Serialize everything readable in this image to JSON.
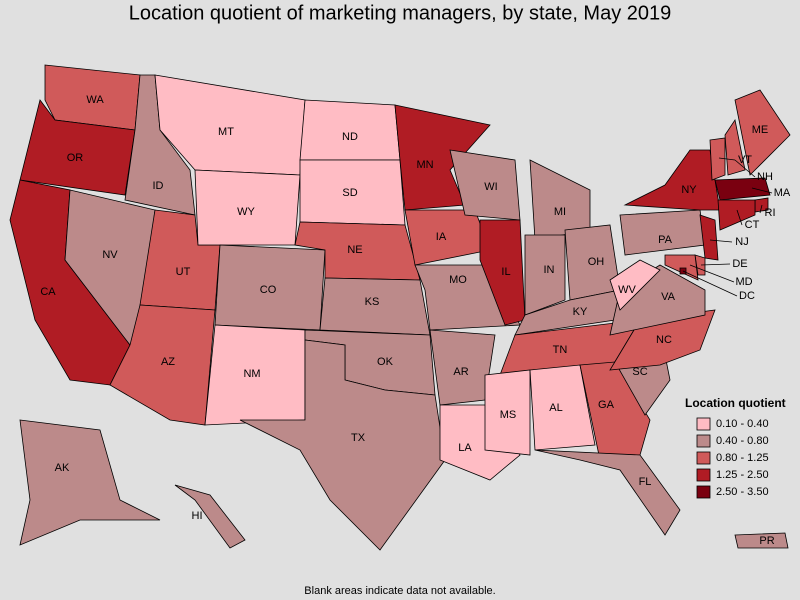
{
  "title": "Location quotient of marketing managers, by state, May 2019",
  "legend": {
    "title": "Location quotient",
    "items": [
      {
        "label": "0.10 - 0.40",
        "color": "#ffbcc4"
      },
      {
        "label": "0.40 - 0.80",
        "color": "#bc8a8a"
      },
      {
        "label": "0.80 - 1.25",
        "color": "#d05a5a"
      },
      {
        "label": "1.25 - 2.50",
        "color": "#b01c24"
      },
      {
        "label": "2.50 - 3.50",
        "color": "#7a0010"
      }
    ]
  },
  "states": [
    {
      "abbr": "WA",
      "class": 2
    },
    {
      "abbr": "OR",
      "class": 3
    },
    {
      "abbr": "CA",
      "class": 3
    },
    {
      "abbr": "ID",
      "class": 1
    },
    {
      "abbr": "NV",
      "class": 1
    },
    {
      "abbr": "UT",
      "class": 2
    },
    {
      "abbr": "AZ",
      "class": 2
    },
    {
      "abbr": "MT",
      "class": 0
    },
    {
      "abbr": "WY",
      "class": 0
    },
    {
      "abbr": "CO",
      "class": 1
    },
    {
      "abbr": "NM",
      "class": 0
    },
    {
      "abbr": "ND",
      "class": 0
    },
    {
      "abbr": "SD",
      "class": 0
    },
    {
      "abbr": "NE",
      "class": 2
    },
    {
      "abbr": "KS",
      "class": 1
    },
    {
      "abbr": "OK",
      "class": 1
    },
    {
      "abbr": "TX",
      "class": 1
    },
    {
      "abbr": "MN",
      "class": 3
    },
    {
      "abbr": "IA",
      "class": 2
    },
    {
      "abbr": "MO",
      "class": 1
    },
    {
      "abbr": "AR",
      "class": 1
    },
    {
      "abbr": "LA",
      "class": 0
    },
    {
      "abbr": "WI",
      "class": 1
    },
    {
      "abbr": "IL",
      "class": 3
    },
    {
      "abbr": "MI",
      "class": 1
    },
    {
      "abbr": "IN",
      "class": 1
    },
    {
      "abbr": "OH",
      "class": 1
    },
    {
      "abbr": "KY",
      "class": 1
    },
    {
      "abbr": "TN",
      "class": 2
    },
    {
      "abbr": "MS",
      "class": 0
    },
    {
      "abbr": "AL",
      "class": 0
    },
    {
      "abbr": "GA",
      "class": 2
    },
    {
      "abbr": "FL",
      "class": 1
    },
    {
      "abbr": "SC",
      "class": 1
    },
    {
      "abbr": "NC",
      "class": 2
    },
    {
      "abbr": "VA",
      "class": 1
    },
    {
      "abbr": "WV",
      "class": 0
    },
    {
      "abbr": "PA",
      "class": 1
    },
    {
      "abbr": "NY",
      "class": 3
    },
    {
      "abbr": "VT",
      "class": 2
    },
    {
      "abbr": "NH",
      "class": 2
    },
    {
      "abbr": "ME",
      "class": 2
    },
    {
      "abbr": "MA",
      "class": 4
    },
    {
      "abbr": "RI",
      "class": 3
    },
    {
      "abbr": "CT",
      "class": 3
    },
    {
      "abbr": "NJ",
      "class": 3
    },
    {
      "abbr": "DE",
      "class": 2
    },
    {
      "abbr": "MD",
      "class": 2
    },
    {
      "abbr": "DC",
      "class": 4
    },
    {
      "abbr": "AK",
      "class": 1
    },
    {
      "abbr": "HI",
      "class": 1
    },
    {
      "abbr": "PR",
      "class": 1
    }
  ],
  "footnote": "Blank areas indicate data not available."
}
